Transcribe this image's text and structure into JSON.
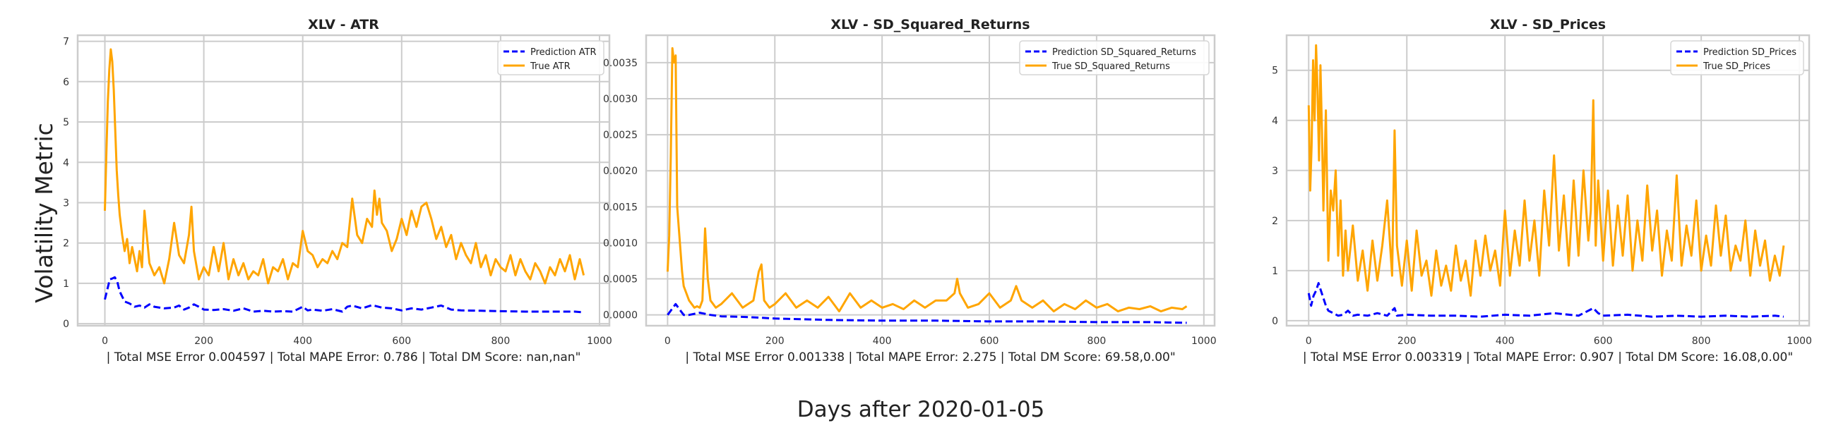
{
  "figure": {
    "ylabel": "Volatility Metric",
    "xlabel": "Days after 2020-01-05"
  },
  "colors": {
    "prediction": "#0000ff",
    "truth": "#ffa500",
    "grid": "#cccccc",
    "frame": "#cccccc"
  },
  "chart_data": [
    {
      "type": "line",
      "title": "XLV - ATR",
      "xlabel": "| Total MSE Error 0.004597 | Total MAPE Error: 0.786 | Total DM Score: nan,nan\"",
      "ylabel": "Volatility Metric",
      "xlim": [
        -55,
        1020
      ],
      "ylim": [
        -0.05,
        7.15
      ],
      "xticks": [
        0,
        200,
        400,
        600,
        800,
        1000
      ],
      "yticks": [
        0,
        1,
        2,
        3,
        4,
        5,
        6,
        7
      ],
      "ytick_labels": [
        "0",
        "1",
        "2",
        "3",
        "4",
        "5",
        "6",
        "7"
      ],
      "grid": true,
      "legend": "top-right",
      "series": [
        {
          "name": "Prediction ATR",
          "style": "dashed",
          "color": "#0000ff",
          "x": [
            0,
            5,
            10,
            15,
            20,
            25,
            30,
            40,
            50,
            60,
            70,
            80,
            90,
            100,
            120,
            140,
            150,
            160,
            170,
            180,
            190,
            200,
            220,
            240,
            260,
            280,
            300,
            320,
            340,
            360,
            380,
            400,
            410,
            420,
            440,
            460,
            480,
            490,
            500,
            520,
            540,
            560,
            580,
            600,
            620,
            640,
            660,
            680,
            700,
            720,
            760,
            800,
            850,
            900,
            950,
            968
          ],
          "y": [
            0.6,
            0.85,
            1.1,
            1.12,
            1.15,
            1.05,
            0.8,
            0.55,
            0.5,
            0.42,
            0.45,
            0.4,
            0.48,
            0.42,
            0.38,
            0.4,
            0.45,
            0.35,
            0.4,
            0.48,
            0.42,
            0.35,
            0.34,
            0.36,
            0.32,
            0.38,
            0.3,
            0.32,
            0.3,
            0.31,
            0.3,
            0.42,
            0.33,
            0.35,
            0.32,
            0.36,
            0.3,
            0.42,
            0.45,
            0.38,
            0.46,
            0.4,
            0.38,
            0.33,
            0.38,
            0.35,
            0.4,
            0.45,
            0.35,
            0.33,
            0.32,
            0.31,
            0.3,
            0.3,
            0.3,
            0.28
          ]
        },
        {
          "name": "True ATR",
          "style": "solid",
          "color": "#ffa500",
          "x": [
            0,
            3,
            6,
            9,
            12,
            15,
            18,
            21,
            24,
            27,
            30,
            35,
            40,
            45,
            50,
            55,
            60,
            65,
            70,
            75,
            80,
            90,
            100,
            110,
            120,
            130,
            140,
            150,
            160,
            170,
            175,
            180,
            190,
            200,
            210,
            220,
            230,
            240,
            250,
            260,
            270,
            280,
            290,
            300,
            310,
            320,
            330,
            340,
            350,
            360,
            370,
            380,
            390,
            400,
            410,
            420,
            430,
            440,
            450,
            460,
            470,
            480,
            490,
            500,
            510,
            520,
            530,
            540,
            545,
            550,
            555,
            560,
            570,
            580,
            590,
            600,
            610,
            620,
            630,
            640,
            650,
            660,
            670,
            680,
            690,
            700,
            710,
            720,
            730,
            740,
            750,
            760,
            770,
            780,
            790,
            800,
            810,
            820,
            830,
            840,
            850,
            860,
            870,
            880,
            890,
            900,
            910,
            920,
            930,
            940,
            950,
            960,
            968
          ],
          "y": [
            2.8,
            4.2,
            5.5,
            6.3,
            6.8,
            6.5,
            5.8,
            4.8,
            3.8,
            3.2,
            2.7,
            2.2,
            1.8,
            2.1,
            1.5,
            1.9,
            1.6,
            1.3,
            1.8,
            1.4,
            2.8,
            1.5,
            1.2,
            1.4,
            1.0,
            1.6,
            2.5,
            1.7,
            1.5,
            2.2,
            2.9,
            1.8,
            1.1,
            1.4,
            1.2,
            1.9,
            1.3,
            2.0,
            1.1,
            1.6,
            1.2,
            1.5,
            1.1,
            1.3,
            1.2,
            1.6,
            1.0,
            1.4,
            1.3,
            1.6,
            1.1,
            1.5,
            1.4,
            2.3,
            1.8,
            1.7,
            1.4,
            1.6,
            1.5,
            1.8,
            1.6,
            2.0,
            1.9,
            3.1,
            2.2,
            2.0,
            2.6,
            2.4,
            3.3,
            2.7,
            3.1,
            2.5,
            2.3,
            1.8,
            2.1,
            2.6,
            2.2,
            2.8,
            2.4,
            2.9,
            3.0,
            2.6,
            2.1,
            2.4,
            1.9,
            2.2,
            1.6,
            2.0,
            1.7,
            1.5,
            2.0,
            1.4,
            1.7,
            1.2,
            1.6,
            1.4,
            1.3,
            1.7,
            1.2,
            1.6,
            1.3,
            1.1,
            1.5,
            1.3,
            1.0,
            1.4,
            1.2,
            1.6,
            1.3,
            1.7,
            1.1,
            1.6,
            1.2
          ]
        }
      ]
    },
    {
      "type": "line",
      "title": "XLV - SD_Squared_Returns",
      "xlabel": "| Total MSE Error 0.001338 | Total MAPE Error: 2.275 | Total DM Score: 69.58,0.00\"",
      "xlim": [
        -40,
        1020
      ],
      "ylim": [
        -0.00015,
        0.00388
      ],
      "xticks": [
        0,
        200,
        400,
        600,
        800,
        1000
      ],
      "yticks": [
        0,
        0.0005,
        0.001,
        0.0015,
        0.002,
        0.0025,
        0.003,
        0.0035
      ],
      "ytick_labels": [
        "0.0000",
        "0.0005",
        "0.0010",
        "0.0015",
        "0.0020",
        "0.0025",
        "0.0030",
        "0.0035"
      ],
      "grid": true,
      "legend": "top-right",
      "series": [
        {
          "name": "Prediction SD_Squared_Returns",
          "style": "dashed",
          "color": "#0000ff",
          "x": [
            0,
            5,
            10,
            15,
            20,
            25,
            30,
            40,
            60,
            80,
            100,
            150,
            200,
            250,
            300,
            400,
            500,
            600,
            700,
            800,
            900,
            968
          ],
          "y": [
            0.0,
            5e-05,
            0.0001,
            0.00015,
            0.0001,
            5e-05,
            0.0,
            0.0,
            3e-05,
            0.0,
            -2e-05,
            -3e-05,
            -5e-05,
            -6e-05,
            -7e-05,
            -8e-05,
            -8e-05,
            -9e-05,
            -9e-05,
            -0.0001,
            -0.0001,
            -0.00011
          ]
        },
        {
          "name": "True SD_Squared_Returns",
          "style": "solid",
          "color": "#ffa500",
          "x": [
            0,
            3,
            6,
            9,
            12,
            15,
            18,
            21,
            24,
            27,
            30,
            35,
            40,
            45,
            50,
            55,
            60,
            65,
            70,
            75,
            80,
            90,
            100,
            120,
            140,
            160,
            170,
            175,
            180,
            190,
            200,
            220,
            240,
            260,
            280,
            300,
            320,
            340,
            360,
            380,
            400,
            420,
            440,
            460,
            480,
            500,
            520,
            535,
            540,
            545,
            560,
            580,
            600,
            620,
            640,
            650,
            660,
            680,
            700,
            720,
            740,
            760,
            780,
            800,
            820,
            840,
            860,
            880,
            900,
            920,
            940,
            960,
            968
          ],
          "y": [
            0.0006,
            0.0011,
            0.0022,
            0.0037,
            0.0035,
            0.0036,
            0.0015,
            0.0012,
            0.0009,
            0.0006,
            0.0004,
            0.0003,
            0.0002,
            0.00015,
            0.0001,
            0.00012,
            0.0001,
            0.0002,
            0.0012,
            0.0005,
            0.0002,
            0.0001,
            0.00015,
            0.0003,
            0.0001,
            0.0002,
            0.0006,
            0.0007,
            0.0002,
            0.0001,
            0.00015,
            0.0003,
            0.0001,
            0.0002,
            0.0001,
            0.00025,
            5e-05,
            0.0003,
            0.0001,
            0.0002,
            0.0001,
            0.00015,
            8e-05,
            0.0002,
            0.0001,
            0.0002,
            0.0002,
            0.0003,
            0.0005,
            0.0003,
            0.0001,
            0.00015,
            0.0003,
            0.0001,
            0.0002,
            0.0004,
            0.0002,
            0.0001,
            0.0002,
            5e-05,
            0.00015,
            8e-05,
            0.0002,
            0.0001,
            0.00015,
            5e-05,
            0.0001,
            8e-05,
            0.00012,
            5e-05,
            0.0001,
            8e-05,
            0.00012
          ]
        }
      ]
    },
    {
      "type": "line",
      "title": "XLV - SD_Prices",
      "xlabel": "| Total MSE Error 0.003319 | Total MAPE Error: 0.907 | Total DM Score: 16.08,0.00\"",
      "xlim": [
        -45,
        1020
      ],
      "ylim": [
        -0.1,
        5.7
      ],
      "xticks": [
        0,
        200,
        400,
        600,
        800,
        1000
      ],
      "yticks": [
        0,
        1,
        2,
        3,
        4,
        5
      ],
      "ytick_labels": [
        "0",
        "1",
        "2",
        "3",
        "4",
        "5"
      ],
      "grid": true,
      "legend": "top-right",
      "series": [
        {
          "name": "Prediction SD_Prices",
          "style": "dashed",
          "color": "#0000ff",
          "x": [
            0,
            5,
            10,
            15,
            20,
            25,
            30,
            35,
            40,
            50,
            60,
            70,
            80,
            90,
            100,
            120,
            140,
            160,
            170,
            175,
            180,
            200,
            250,
            300,
            350,
            400,
            450,
            500,
            550,
            580,
            590,
            600,
            650,
            700,
            750,
            800,
            850,
            900,
            950,
            968
          ],
          "y": [
            0.55,
            0.3,
            0.5,
            0.6,
            0.75,
            0.6,
            0.45,
            0.3,
            0.2,
            0.15,
            0.1,
            0.12,
            0.2,
            0.1,
            0.12,
            0.1,
            0.15,
            0.1,
            0.2,
            0.25,
            0.1,
            0.12,
            0.1,
            0.1,
            0.08,
            0.12,
            0.1,
            0.15,
            0.1,
            0.25,
            0.15,
            0.1,
            0.12,
            0.08,
            0.1,
            0.08,
            0.1,
            0.08,
            0.1,
            0.08
          ]
        },
        {
          "name": "True SD_Prices",
          "style": "solid",
          "color": "#ffa500",
          "x": [
            0,
            3,
            6,
            9,
            12,
            15,
            18,
            21,
            24,
            27,
            30,
            35,
            40,
            45,
            50,
            55,
            60,
            65,
            70,
            75,
            80,
            90,
            100,
            110,
            120,
            130,
            140,
            150,
            160,
            170,
            175,
            180,
            190,
            200,
            210,
            220,
            230,
            240,
            250,
            260,
            270,
            280,
            290,
            300,
            310,
            320,
            330,
            340,
            350,
            360,
            370,
            380,
            390,
            400,
            410,
            420,
            430,
            440,
            450,
            460,
            470,
            480,
            490,
            500,
            510,
            520,
            530,
            540,
            550,
            560,
            570,
            575,
            580,
            585,
            590,
            600,
            610,
            620,
            630,
            640,
            650,
            660,
            670,
            680,
            690,
            700,
            710,
            720,
            730,
            740,
            750,
            760,
            770,
            780,
            790,
            800,
            810,
            820,
            830,
            840,
            850,
            860,
            870,
            880,
            890,
            900,
            910,
            920,
            930,
            940,
            950,
            960,
            968
          ],
          "y": [
            4.3,
            2.6,
            3.5,
            5.2,
            4.0,
            5.5,
            4.6,
            3.2,
            5.1,
            3.8,
            2.2,
            4.2,
            1.2,
            2.6,
            2.2,
            3.0,
            1.3,
            2.4,
            0.9,
            1.8,
            1.0,
            1.9,
            0.8,
            1.4,
            0.6,
            1.6,
            0.8,
            1.5,
            2.4,
            0.9,
            3.8,
            1.5,
            0.7,
            1.6,
            0.6,
            1.8,
            0.9,
            1.2,
            0.5,
            1.4,
            0.7,
            1.1,
            0.6,
            1.5,
            0.8,
            1.2,
            0.5,
            1.6,
            0.9,
            1.7,
            1.0,
            1.4,
            0.7,
            2.2,
            0.9,
            1.8,
            1.1,
            2.4,
            1.2,
            2.0,
            0.9,
            2.6,
            1.5,
            3.3,
            1.4,
            2.5,
            1.1,
            2.8,
            1.3,
            3.0,
            1.6,
            2.2,
            4.4,
            1.5,
            2.8,
            1.2,
            2.6,
            1.1,
            2.3,
            1.3,
            2.5,
            1.0,
            2.0,
            1.2,
            2.7,
            1.4,
            2.2,
            0.9,
            1.8,
            1.2,
            2.9,
            1.1,
            1.9,
            1.3,
            2.4,
            1.0,
            1.7,
            1.1,
            2.3,
            1.3,
            2.1,
            1.0,
            1.5,
            1.2,
            2.0,
            0.9,
            1.8,
            1.1,
            1.6,
            0.8,
            1.3,
            0.9,
            1.5
          ]
        }
      ]
    }
  ]
}
